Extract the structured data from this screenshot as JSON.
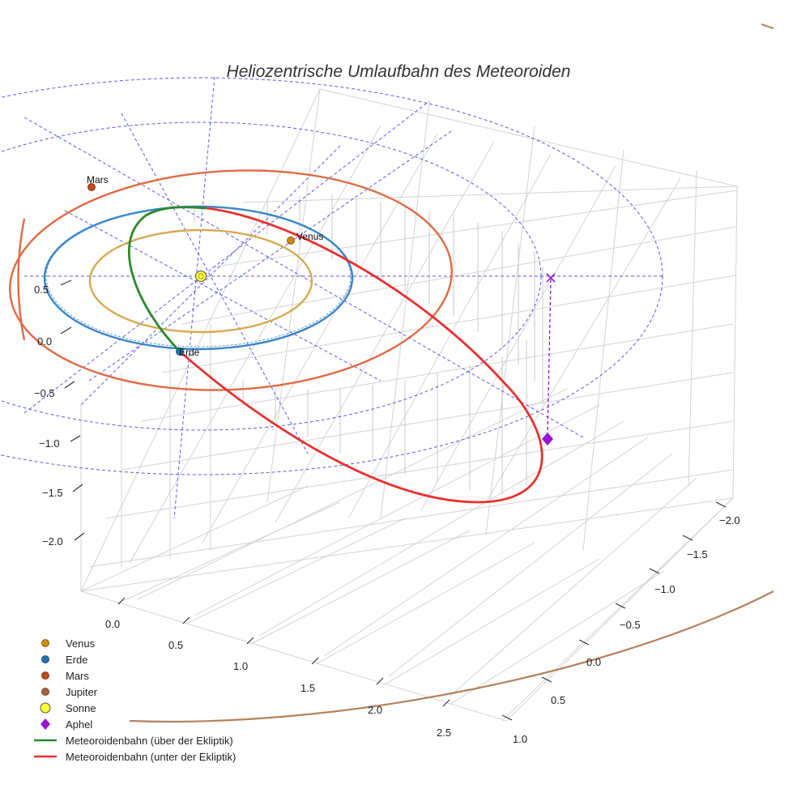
{
  "chart_data": {
    "type": "3d-line",
    "title": "Heliozentrische Umlaufbahn des Meteoroiden",
    "axes": {
      "x_ticks": [
        "−2.0",
        "−1.5",
        "−1.0",
        "−0.5",
        "0.0",
        "0.5",
        "1.0"
      ],
      "y_ticks": [
        "0.0",
        "0.5",
        "1.0",
        "1.5",
        "2.0",
        "2.5"
      ],
      "z_ticks": [
        "0.5",
        "0.0",
        "−0.5",
        "−1.0",
        "−1.5",
        "−2.0"
      ],
      "xlim": [
        -2.2,
        1.1
      ],
      "ylim": [
        -0.2,
        2.8
      ],
      "zlim": [
        -2.3,
        0.7
      ],
      "grid": true
    },
    "planets": [
      {
        "name": "Venus",
        "label": "Venus",
        "orbit_radius_au": 0.72,
        "color": "#d4a017"
      },
      {
        "name": "Erde",
        "label": "Erde",
        "orbit_radius_au": 1.0,
        "color": "#1f77b4"
      },
      {
        "name": "Mars",
        "label": "Mars",
        "orbit_radius_au": 1.52,
        "color": "#e0622b"
      },
      {
        "name": "Jupiter",
        "orbit_radius_au": 5.2,
        "color": "#b5825e"
      }
    ],
    "sun": {
      "name": "Sonne",
      "color": "#ffff00"
    },
    "aphel": {
      "name": "Aphel",
      "color": "#8b00d4"
    },
    "series": [
      {
        "name": "Meteoroidenbahn (über der Ekliptik)",
        "color": "#2a8a2a"
      },
      {
        "name": "Meteoroidenbahn (unter der Ekliptik)",
        "color": "#e8312f"
      }
    ],
    "legend": {
      "position": "bottom-left",
      "entries": [
        {
          "label": "Venus",
          "marker": "dot",
          "color": "#d4890f"
        },
        {
          "label": "Erde",
          "marker": "dot",
          "color": "#1f77b4"
        },
        {
          "label": "Mars",
          "marker": "dot",
          "color": "#c24a18"
        },
        {
          "label": "Jupiter",
          "marker": "dot",
          "color": "#a8623a"
        },
        {
          "label": "Sonne",
          "marker": "sun",
          "color": "#ffff33"
        },
        {
          "label": "Aphel",
          "marker": "diamond",
          "color": "#9b13d8"
        },
        {
          "label": "Meteoroidenbahn (über der Ekliptik)",
          "marker": "line",
          "color": "#2a8a2a"
        },
        {
          "label": "Meteoroidenbahn (unter der Ekliptik)",
          "marker": "line",
          "color": "#e8312f"
        }
      ]
    }
  }
}
